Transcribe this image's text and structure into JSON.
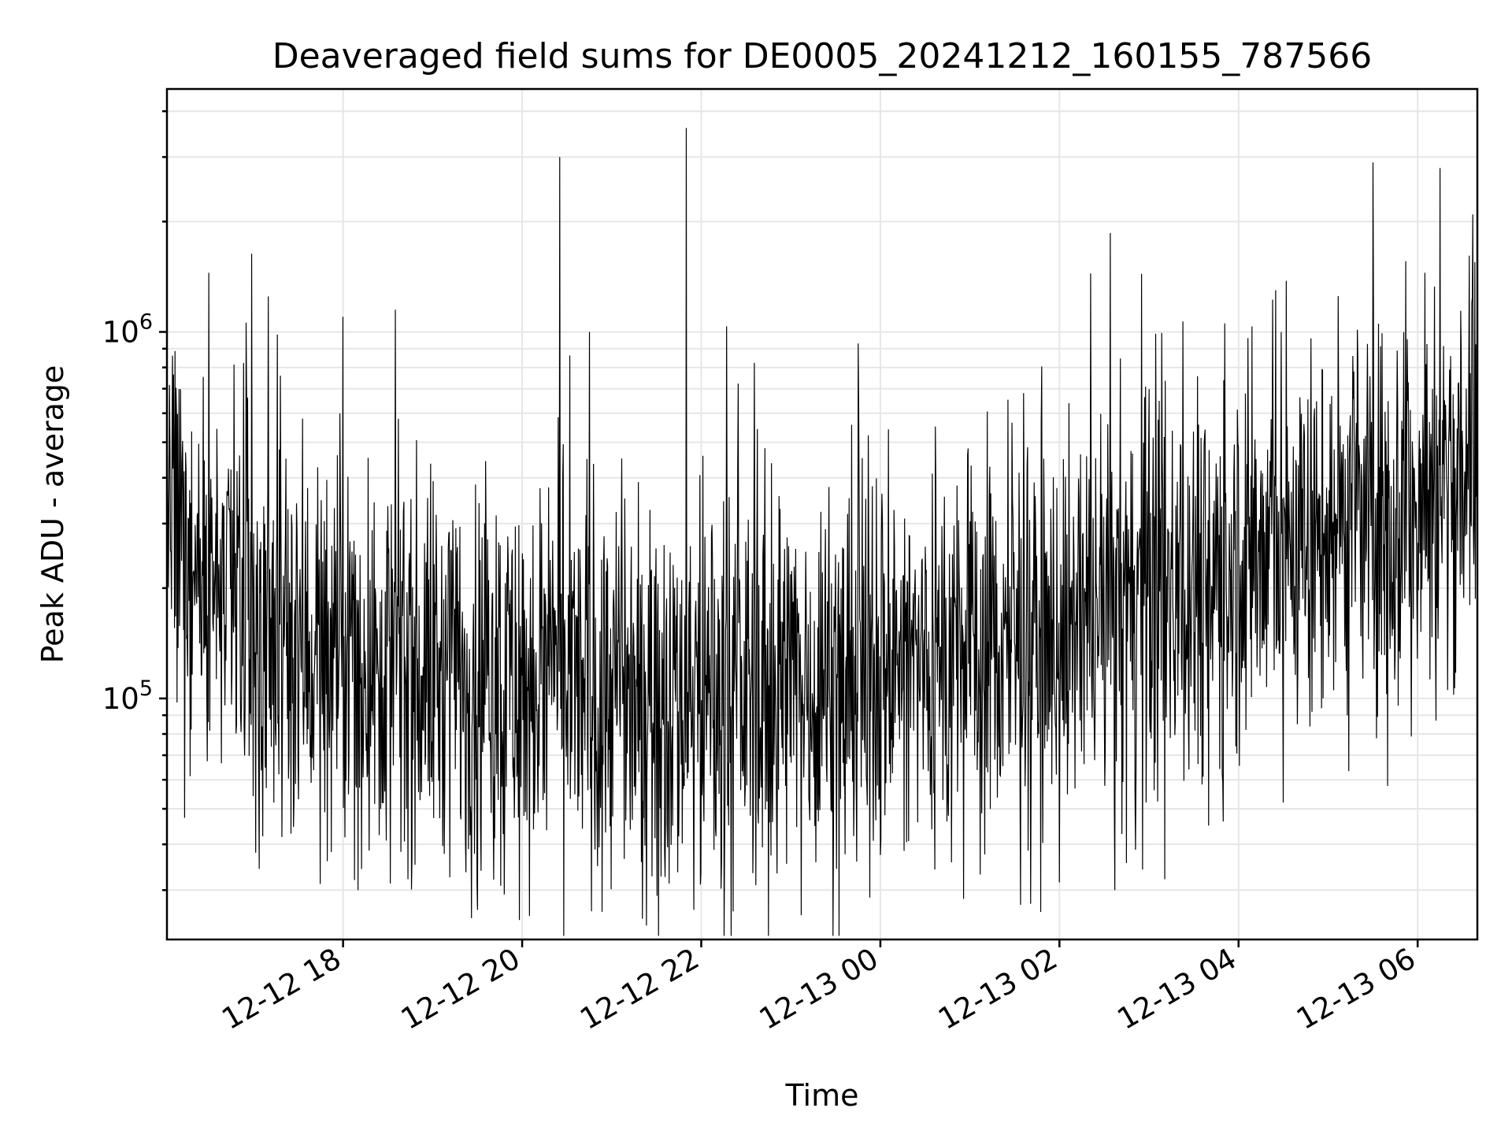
{
  "chart_data": {
    "type": "line",
    "title": "Deaveraged field sums for DE0005_20241212_160155_787566",
    "xlabel": "Time",
    "ylabel": "Peak ADU - average",
    "yscale": "log",
    "ylim": [
      22000,
      4600000
    ],
    "xlim": [
      "2024-12-12 16:02",
      "2024-12-13 06:40"
    ],
    "grid": true,
    "line_color": "#000000",
    "x_ticks": [
      "12-12 18",
      "12-12 20",
      "12-12 22",
      "12-13 00",
      "12-13 02",
      "12-13 04",
      "12-13 06"
    ],
    "y_ticks": [
      {
        "base": "10",
        "exp": "5",
        "value": 100000
      },
      {
        "base": "10",
        "exp": "6",
        "value": 1000000
      }
    ],
    "trend": {
      "x": [
        "2024-12-12 16:02",
        "2024-12-12 17:00",
        "2024-12-12 18:00",
        "2024-12-12 20:00",
        "2024-12-12 22:00",
        "2024-12-13 00:00",
        "2024-12-13 02:00",
        "2024-12-13 03:00",
        "2024-12-13 04:00",
        "2024-12-13 05:00",
        "2024-12-13 06:00",
        "2024-12-13 06:40"
      ],
      "y": [
        280000,
        160000,
        130000,
        110000,
        100000,
        120000,
        150000,
        190000,
        240000,
        280000,
        330000,
        480000
      ]
    },
    "peaks": [
      {
        "x": "2024-12-12 16:30",
        "y": 1450000
      },
      {
        "x": "2024-12-12 16:55",
        "y": 1060000
      },
      {
        "x": "2024-12-12 17:10",
        "y": 1250000
      },
      {
        "x": "2024-12-12 18:00",
        "y": 1100000
      },
      {
        "x": "2024-12-12 18:35",
        "y": 1150000
      },
      {
        "x": "2024-12-12 20:25",
        "y": 3000000
      },
      {
        "x": "2024-12-12 20:45",
        "y": 1000000
      },
      {
        "x": "2024-12-12 21:50",
        "y": 3600000
      },
      {
        "x": "2024-12-12 23:45",
        "y": 930000
      },
      {
        "x": "2024-12-13 02:55",
        "y": 1440000
      },
      {
        "x": "2024-12-13 04:25",
        "y": 1300000
      },
      {
        "x": "2024-12-13 05:30",
        "y": 2900000
      },
      {
        "x": "2024-12-13 06:15",
        "y": 2800000
      },
      {
        "x": "2024-12-13 06:05",
        "y": 1450000
      }
    ],
    "troughs": [
      {
        "x": "2024-12-12 18:10",
        "y": 30000
      },
      {
        "x": "2024-12-12 19:30",
        "y": 26500
      },
      {
        "x": "2024-12-12 20:05",
        "y": 25500
      },
      {
        "x": "2024-12-12 21:55",
        "y": 26500
      },
      {
        "x": "2024-12-13 02:00",
        "y": 31500
      },
      {
        "x": "2024-12-13 03:40",
        "y": 45000
      },
      {
        "x": "2024-12-13 04:30",
        "y": 52000
      }
    ]
  }
}
